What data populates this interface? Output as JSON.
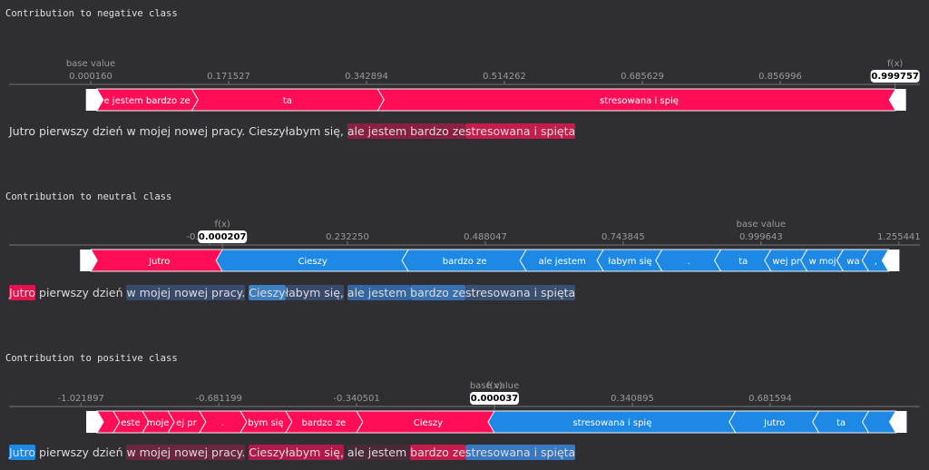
{
  "chart_data": [
    {
      "type": "force",
      "title": "Contribution to negative class",
      "xlim": [
        -0.1013,
        1.0306
      ],
      "xticks": [
        {
          "value": 0.00016,
          "label": "0.000160"
        },
        0.171527,
        0.342894,
        0.514262,
        0.685629,
        0.856996
      ],
      "base_label": "base value",
      "base_value": 0.00016,
      "fx_label": "f(x)",
      "fx": {
        "value": 0.999757,
        "label": "0.999757"
      },
      "positive_color": "#ff0d57",
      "negative_color": "#1e88e5",
      "segments": [
        {
          "label": "e jestem bardzo ze",
          "value": 0.118
        },
        {
          "label": "ta",
          "value": 0.231
        },
        {
          "label": "stresowana i spię",
          "value": 0.643
        }
      ],
      "tokens": [
        {
          "text": "Jutro pierwszy dzień w mojej nowej pracy. Cieszyłabym się, ",
          "color": null
        },
        {
          "text": "ale jestem bardzo ze",
          "color": "#8a2040"
        },
        {
          "text": "stresowana i spięta",
          "color": "#c41c4c"
        }
      ]
    },
    {
      "type": "force",
      "title": "Contribution to neutral class",
      "xlim": [
        -0.3957,
        1.2945
      ],
      "xticks": [
        {
          "value": -0.023547,
          "label": "-0.023547"
        },
        {
          "value": 0.23225,
          "label": "0.232250"
        },
        0.488047,
        0.743845,
        0.999643,
        1.255441
      ],
      "base_label": "base value",
      "base_value": 0.999643,
      "fx_label": "f(x)",
      "fx": {
        "value": 0.000207,
        "label": "0.000207"
      },
      "positive_color": "#ff0d57",
      "negative_color": "#1e88e5",
      "segments": [
        {
          "label": "Jutro",
          "value": 0.244
        },
        {
          "label": "Cieszy",
          "value": -0.345
        },
        {
          "label": "bardzo ze",
          "value": -0.219
        },
        {
          "label": "ale jestem",
          "value": -0.143
        },
        {
          "label": "łabym się",
          "value": -0.109
        },
        {
          "label": ".",
          "value": -0.109
        },
        {
          "label": "ta",
          "value": -0.093
        },
        {
          "label": "wej pr",
          "value": -0.067
        },
        {
          "label": "w moj",
          "value": -0.067
        },
        {
          "label": "wa",
          "value": -0.047
        },
        {
          "label": ",",
          "value": -0.037
        }
      ],
      "tokens": [
        {
          "text": "Jutro",
          "color": "#e01550"
        },
        {
          "text": " pierwszy dzień ",
          "color": null
        },
        {
          "text": "w mojej nowej pracy.",
          "color": "#3a4a6a"
        },
        {
          "text": " ",
          "color": null
        },
        {
          "text": "Cieszy",
          "color": "#3e7fc0"
        },
        {
          "text": "łabym się,",
          "color": "#3a4a6a"
        },
        {
          "text": " ",
          "color": null
        },
        {
          "text": "ale jestem ",
          "color": "#3366a0"
        },
        {
          "text": "bardzo ze",
          "color": "#3870b0"
        },
        {
          "text": "stresowana i spięta",
          "color": "#3a5070"
        }
      ]
    },
    {
      "type": "force",
      "title": "Contribution to positive class",
      "xlim": [
        -1.1995,
        1.0516
      ],
      "xticks": [
        -1.021897,
        -0.681199,
        -0.340501,
        0.340895,
        0.681594
      ],
      "base_label": "base value",
      "base_value": 3.7e-05,
      "fx_label": "f(x)",
      "fx": {
        "value": 3.7e-05,
        "label": "0.000037"
      },
      "positive_color": "#ff0d57",
      "negative_color": "#1e88e5",
      "segments": [
        {
          "label": null,
          "value": 0.04
        },
        {
          "label": "este",
          "value": 0.072
        },
        {
          "label": "moje",
          "value": 0.063
        },
        {
          "label": "ej pr",
          "value": 0.078
        },
        {
          "label": ".",
          "value": 0.101
        },
        {
          "label": "bym się",
          "value": 0.112
        },
        {
          "label": "bardzo ze",
          "value": 0.175
        },
        {
          "label": "Cieszy",
          "value": 0.341
        },
        {
          "label": "stresowana i spię",
          "value": -0.596
        },
        {
          "label": "Jutro",
          "value": -0.206
        },
        {
          "label": "ta",
          "value": -0.123
        },
        {
          "label": null,
          "value": -0.067
        }
      ],
      "tokens": [
        {
          "text": "Jutro",
          "color": "#1e88e5"
        },
        {
          "text": " pierwszy dzień ",
          "color": null
        },
        {
          "text": "w mojej nowej pracy.",
          "color": "#6a2540"
        },
        {
          "text": " ",
          "color": null
        },
        {
          "text": "Cieszyłabym się,",
          "color": "#b01a4a"
        },
        {
          "text": " ",
          "color": null
        },
        {
          "text": "ale jestem ",
          "color": "#4a2a38"
        },
        {
          "text": "bardzo ze",
          "color": "#c41c4c"
        },
        {
          "text": "stresowana i spięta",
          "color": "#3878c0"
        }
      ]
    }
  ]
}
